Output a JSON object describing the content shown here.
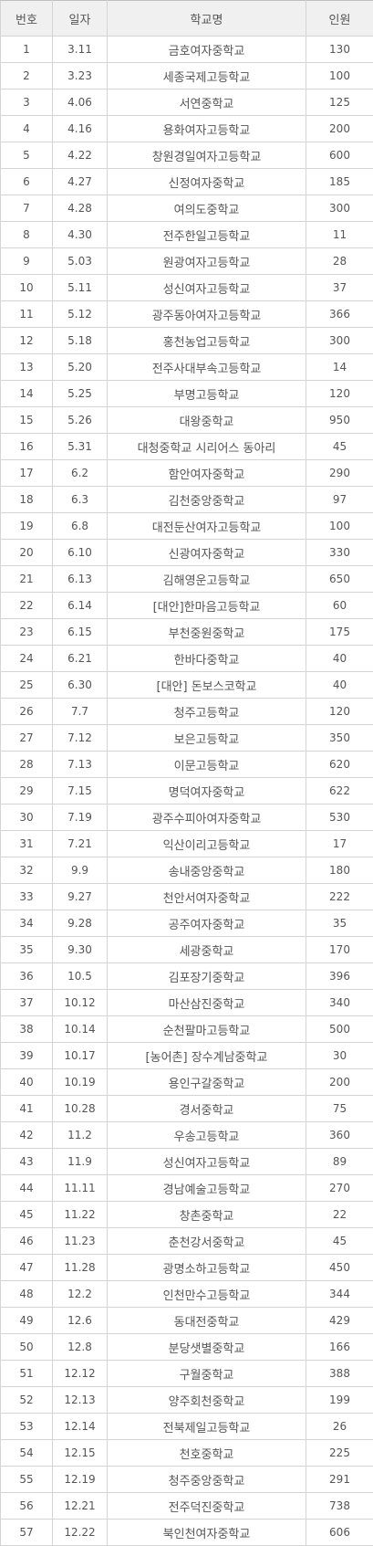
{
  "table": {
    "headers": {
      "number": "번호",
      "date": "일자",
      "school": "학교명",
      "count": "인원"
    },
    "rows": [
      {
        "number": "1",
        "date": "3.11",
        "school": "금호여자중학교",
        "count": "130"
      },
      {
        "number": "2",
        "date": "3.23",
        "school": "세종국제고등학교",
        "count": "100"
      },
      {
        "number": "3",
        "date": "4.06",
        "school": "서연중학교",
        "count": "125"
      },
      {
        "number": "4",
        "date": "4.16",
        "school": "용화여자고등학교",
        "count": "200"
      },
      {
        "number": "5",
        "date": "4.22",
        "school": "창원경일여자고등학교",
        "count": "600"
      },
      {
        "number": "6",
        "date": "4.27",
        "school": "신정여자중학교",
        "count": "185"
      },
      {
        "number": "7",
        "date": "4.28",
        "school": "여의도중학교",
        "count": "300"
      },
      {
        "number": "8",
        "date": "4.30",
        "school": "전주한일고등학교",
        "count": "11"
      },
      {
        "number": "9",
        "date": "5.03",
        "school": "원광여자고등학교",
        "count": "28"
      },
      {
        "number": "10",
        "date": "5.11",
        "school": "성신여자고등학교",
        "count": "37"
      },
      {
        "number": "11",
        "date": "5.12",
        "school": "광주동아여자고등학교",
        "count": "366"
      },
      {
        "number": "12",
        "date": "5.18",
        "school": "홍천농업고등학교",
        "count": "300"
      },
      {
        "number": "13",
        "date": "5.20",
        "school": "전주사대부속고등학교",
        "count": "14"
      },
      {
        "number": "14",
        "date": "5.25",
        "school": "부명고등학교",
        "count": "120"
      },
      {
        "number": "15",
        "date": "5.26",
        "school": "대왕중학교",
        "count": "950"
      },
      {
        "number": "16",
        "date": "5.31",
        "school": "대청중학교 시리어스 동아리",
        "count": "45"
      },
      {
        "number": "17",
        "date": "6.2",
        "school": "함안여자중학교",
        "count": "290"
      },
      {
        "number": "18",
        "date": "6.3",
        "school": "김천중앙중학교",
        "count": "97"
      },
      {
        "number": "19",
        "date": "6.8",
        "school": "대전둔산여자고등학교",
        "count": "100"
      },
      {
        "number": "20",
        "date": "6.10",
        "school": "신광여자중학교",
        "count": "330"
      },
      {
        "number": "21",
        "date": "6.13",
        "school": "김해영운고등학교",
        "count": "650"
      },
      {
        "number": "22",
        "date": "6.14",
        "school": "[대안]한마음고등학교",
        "count": "60"
      },
      {
        "number": "23",
        "date": "6.15",
        "school": "부천중원중학교",
        "count": "175"
      },
      {
        "number": "24",
        "date": "6.21",
        "school": "한바다중학교",
        "count": "40"
      },
      {
        "number": "25",
        "date": "6.30",
        "school": "[대안] 돈보스코학교",
        "count": "40"
      },
      {
        "number": "26",
        "date": "7.7",
        "school": "청주고등학교",
        "count": "120"
      },
      {
        "number": "27",
        "date": "7.12",
        "school": "보은고등학교",
        "count": "350"
      },
      {
        "number": "28",
        "date": "7.13",
        "school": "이문고등학교",
        "count": "620"
      },
      {
        "number": "29",
        "date": "7.15",
        "school": "명덕여자중학교",
        "count": "622"
      },
      {
        "number": "30",
        "date": "7.19",
        "school": "광주수피아여자중학교",
        "count": "530"
      },
      {
        "number": "31",
        "date": "7.21",
        "school": "익산이리고등학교",
        "count": "17"
      },
      {
        "number": "32",
        "date": "9.9",
        "school": "송내중앙중학교",
        "count": "180"
      },
      {
        "number": "33",
        "date": "9.27",
        "school": "천안서여자중학교",
        "count": "222"
      },
      {
        "number": "34",
        "date": "9.28",
        "school": "공주여자중학교",
        "count": "35"
      },
      {
        "number": "35",
        "date": "9.30",
        "school": "세광중학교",
        "count": "170"
      },
      {
        "number": "36",
        "date": "10.5",
        "school": "김포장기중학교",
        "count": "396"
      },
      {
        "number": "37",
        "date": "10.12",
        "school": "마산삼진중학교",
        "count": "340"
      },
      {
        "number": "38",
        "date": "10.14",
        "school": "순천팔마고등학교",
        "count": "500"
      },
      {
        "number": "39",
        "date": "10.17",
        "school": "[농어촌] 장수계남중학교",
        "count": "30"
      },
      {
        "number": "40",
        "date": "10.19",
        "school": "용인구갈중학교",
        "count": "200"
      },
      {
        "number": "41",
        "date": "10.28",
        "school": "경서중학교",
        "count": "75"
      },
      {
        "number": "42",
        "date": "11.2",
        "school": "우송고등학교",
        "count": "360"
      },
      {
        "number": "43",
        "date": "11.9",
        "school": "성신여자고등학교",
        "count": "89"
      },
      {
        "number": "44",
        "date": "11.11",
        "school": "경남예술고등학교",
        "count": "270"
      },
      {
        "number": "45",
        "date": "11.22",
        "school": "창촌중학교",
        "count": "22"
      },
      {
        "number": "46",
        "date": "11.23",
        "school": "춘천강서중학교",
        "count": "45"
      },
      {
        "number": "47",
        "date": "11.28",
        "school": "광명소하고등학교",
        "count": "450"
      },
      {
        "number": "48",
        "date": "12.2",
        "school": "인천만수고등학교",
        "count": "344"
      },
      {
        "number": "49",
        "date": "12.6",
        "school": "동대전중학교",
        "count": "429"
      },
      {
        "number": "50",
        "date": "12.8",
        "school": "분당샛별중학교",
        "count": "166"
      },
      {
        "number": "51",
        "date": "12.12",
        "school": "구월중학교",
        "count": "388"
      },
      {
        "number": "52",
        "date": "12.13",
        "school": "양주회천중학교",
        "count": "199"
      },
      {
        "number": "53",
        "date": "12.14",
        "school": "전북제일고등학교",
        "count": "26"
      },
      {
        "number": "54",
        "date": "12.15",
        "school": "천호중학교",
        "count": "225"
      },
      {
        "number": "55",
        "date": "12.19",
        "school": "청주중앙중학교",
        "count": "291"
      },
      {
        "number": "56",
        "date": "12.21",
        "school": "전주덕진중학교",
        "count": "738"
      },
      {
        "number": "57",
        "date": "12.22",
        "school": "북인천여자중학교",
        "count": "606"
      }
    ]
  }
}
